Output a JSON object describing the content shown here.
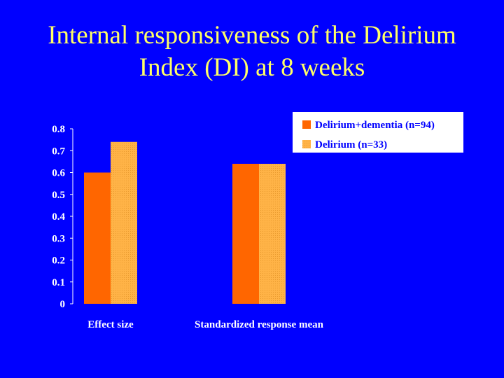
{
  "title_lines": [
    "Internal responsiveness of the Delirium",
    "Index (DI) at 8 weeks"
  ],
  "colors": {
    "background": "#0000ff",
    "title": "#ffff66",
    "series_1": "#ff6600",
    "series_2": "#ffb347",
    "axis": "#ffffff",
    "legend_bg": "#ffffff"
  },
  "chart_data": {
    "type": "bar",
    "title": "",
    "xlabel": "",
    "ylabel": "",
    "categories": [
      "Effect size",
      "Standardized response mean"
    ],
    "series": [
      {
        "name": "Delirium+dementia (n=94)",
        "values": [
          0.6,
          0.64
        ]
      },
      {
        "name": "Delirium (n=33)",
        "values": [
          0.74,
          0.64
        ]
      }
    ],
    "ylim": [
      0,
      0.8
    ],
    "yticks": [
      "0",
      "0.1",
      "0.2",
      "0.3",
      "0.4",
      "0.5",
      "0.6",
      "0.7",
      "0.8"
    ],
    "grid": false,
    "legend_position": "top-right"
  }
}
